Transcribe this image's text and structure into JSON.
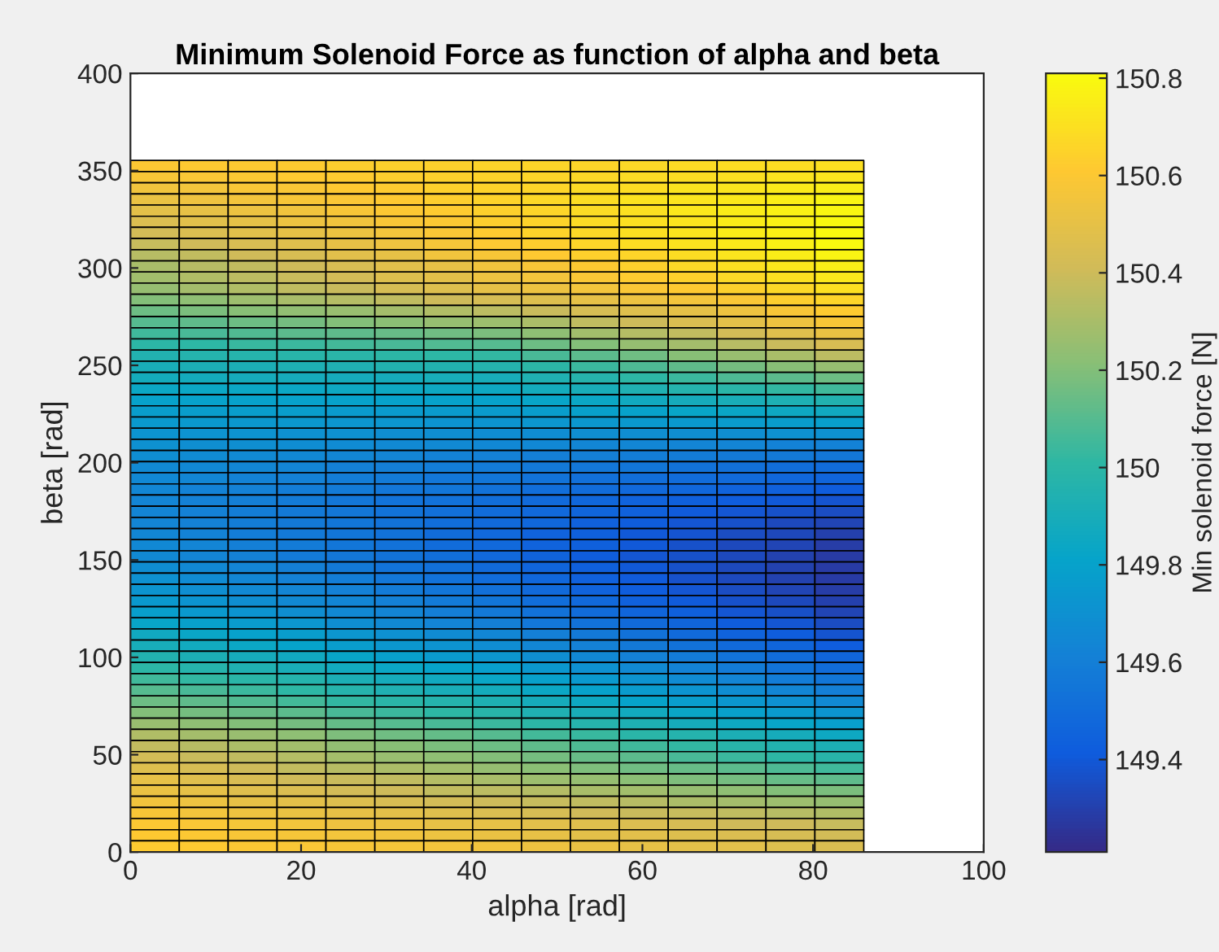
{
  "chart_data": {
    "type": "heatmap",
    "title": "Minimum Solenoid Force as function of alpha and beta",
    "xlabel": "alpha [rad]",
    "ylabel": "beta [rad]",
    "clabel": "Min solenoid force [N]",
    "xlim": [
      0,
      100
    ],
    "xticks": [
      0,
      20,
      40,
      60,
      80,
      100
    ],
    "ylim": [
      0,
      400
    ],
    "yticks": [
      0,
      50,
      100,
      150,
      200,
      250,
      300,
      350,
      400
    ],
    "clim": [
      149.21,
      150.81
    ],
    "cticks": [
      149.4,
      149.6,
      149.8,
      {
        "value": 150,
        "label": "150"
      },
      150.2,
      150.4,
      150.6,
      150.8
    ],
    "colors": [
      "#352a87",
      "#0f5cdd",
      "#1481d6",
      "#06a4ca",
      "#2eb7a4",
      "#87bf77",
      "#d1bb59",
      "#fec832",
      "#f9fb0e"
    ],
    "grid": false,
    "x": [
      2.86,
      8.59,
      14.32,
      20.05,
      25.78,
      31.51,
      37.24,
      42.97,
      48.7,
      54.43,
      60.16,
      65.89,
      71.62,
      77.35,
      83.08
    ],
    "y": [
      352.38,
      346.65,
      340.92,
      335.19,
      329.46,
      323.73,
      318.0,
      312.27,
      306.54,
      300.81,
      295.08,
      289.35,
      283.62,
      277.89,
      272.16,
      266.43,
      260.7,
      254.97,
      249.24,
      243.51,
      237.78,
      232.05,
      226.32,
      220.59,
      214.86,
      209.13,
      203.4,
      197.68,
      191.95,
      186.22,
      180.49,
      174.76,
      169.03,
      163.3,
      157.57,
      151.84,
      146.11,
      140.38,
      134.65,
      128.92,
      123.19,
      117.46,
      111.73,
      106.0,
      100.27,
      94.54,
      88.81,
      83.08,
      77.35,
      71.62,
      65.89,
      60.16,
      54.43,
      48.7,
      42.97,
      37.24,
      31.51,
      25.78,
      20.05,
      14.32,
      8.59,
      2.86
    ],
    "cells": [
      [
        150.6,
        150.61,
        150.61,
        150.62,
        150.63,
        150.64,
        150.64,
        150.65,
        150.66,
        150.66,
        150.67,
        150.68,
        150.69,
        150.69,
        150.7
      ],
      [
        150.58,
        150.59,
        150.6,
        150.61,
        150.62,
        150.63,
        150.64,
        150.65,
        150.66,
        150.67,
        150.68,
        150.69,
        150.7,
        150.71,
        150.72
      ],
      [
        150.55,
        150.56,
        150.58,
        150.59,
        150.61,
        150.62,
        150.64,
        150.65,
        150.66,
        150.68,
        150.69,
        150.71,
        150.72,
        150.74,
        150.75
      ],
      [
        150.52,
        150.54,
        150.56,
        150.58,
        150.59,
        150.61,
        150.63,
        150.65,
        150.67,
        150.69,
        150.71,
        150.72,
        150.74,
        150.76,
        150.78
      ],
      [
        150.49,
        150.51,
        150.53,
        150.55,
        150.58,
        150.6,
        150.62,
        150.64,
        150.66,
        150.68,
        150.7,
        150.73,
        150.75,
        150.77,
        150.79
      ],
      [
        150.45,
        150.48,
        150.5,
        150.53,
        150.55,
        150.58,
        150.6,
        150.63,
        150.65,
        150.68,
        150.7,
        150.72,
        150.75,
        150.77,
        150.8
      ],
      [
        150.42,
        150.45,
        150.48,
        150.51,
        150.53,
        150.56,
        150.59,
        150.62,
        150.65,
        150.67,
        150.7,
        150.72,
        150.75,
        150.77,
        150.8
      ],
      [
        150.38,
        150.41,
        150.44,
        150.47,
        150.51,
        150.54,
        150.57,
        150.6,
        150.63,
        150.66,
        150.69,
        150.71,
        150.74,
        150.77,
        150.8
      ],
      [
        150.34,
        150.37,
        150.41,
        150.44,
        150.48,
        150.51,
        150.55,
        150.58,
        150.61,
        150.64,
        150.66,
        150.69,
        150.72,
        150.75,
        150.78
      ],
      [
        150.3,
        150.34,
        150.37,
        150.41,
        150.44,
        150.48,
        150.51,
        150.55,
        150.58,
        150.61,
        150.64,
        150.67,
        150.7,
        150.73,
        150.76
      ],
      [
        150.28,
        150.32,
        150.35,
        150.39,
        150.42,
        150.46,
        150.49,
        150.53,
        150.56,
        150.59,
        150.62,
        150.64,
        150.67,
        150.7,
        150.73
      ],
      [
        150.25,
        150.29,
        150.32,
        150.36,
        150.39,
        150.43,
        150.46,
        150.5,
        150.53,
        150.56,
        150.59,
        150.61,
        150.64,
        150.67,
        150.7
      ],
      [
        150.2,
        150.23,
        150.27,
        150.3,
        150.33,
        150.36,
        150.4,
        150.43,
        150.46,
        150.5,
        150.53,
        150.56,
        150.59,
        150.63,
        150.66
      ],
      [
        150.15,
        150.18,
        150.21,
        150.24,
        150.26,
        150.29,
        150.32,
        150.35,
        150.39,
        150.43,
        150.47,
        150.5,
        150.54,
        150.58,
        150.62
      ],
      [
        150.1,
        150.12,
        150.15,
        150.17,
        150.2,
        150.22,
        150.25,
        150.27,
        150.31,
        150.36,
        150.4,
        150.45,
        150.49,
        150.54,
        150.58
      ],
      [
        150.05,
        150.07,
        150.09,
        150.11,
        150.12,
        150.14,
        150.16,
        150.18,
        150.23,
        150.28,
        150.33,
        150.37,
        150.42,
        150.47,
        150.52
      ],
      [
        150.0,
        150.01,
        150.03,
        150.04,
        150.06,
        150.07,
        150.09,
        150.1,
        150.15,
        150.2,
        150.25,
        150.29,
        150.34,
        150.39,
        150.44
      ],
      [
        149.95,
        149.96,
        149.97,
        149.98,
        149.99,
        150.0,
        150.01,
        150.02,
        150.07,
        150.11,
        150.16,
        150.21,
        150.26,
        150.3,
        150.35
      ],
      [
        149.91,
        149.92,
        149.92,
        149.93,
        149.94,
        149.95,
        149.95,
        149.96,
        150.0,
        150.04,
        150.08,
        150.12,
        150.17,
        150.21,
        150.25
      ],
      [
        149.88,
        149.88,
        149.89,
        149.89,
        149.89,
        149.89,
        149.9,
        149.9,
        149.94,
        149.97,
        150.01,
        150.04,
        150.08,
        150.11,
        150.15
      ],
      [
        149.84,
        149.84,
        149.84,
        149.84,
        149.85,
        149.85,
        149.85,
        149.85,
        149.88,
        149.91,
        149.94,
        149.96,
        149.99,
        150.02,
        150.05
      ],
      [
        149.8,
        149.8,
        149.8,
        149.8,
        149.8,
        149.8,
        149.8,
        149.8,
        149.82,
        149.84,
        149.86,
        149.89,
        149.91,
        149.93,
        149.95
      ],
      [
        149.77,
        149.77,
        149.77,
        149.77,
        149.76,
        149.76,
        149.76,
        149.76,
        149.77,
        149.79,
        149.8,
        149.82,
        149.83,
        149.85,
        149.86
      ],
      [
        149.75,
        149.75,
        149.74,
        149.74,
        149.73,
        149.73,
        149.72,
        149.72,
        149.73,
        149.74,
        149.75,
        149.75,
        149.76,
        149.77,
        149.78
      ],
      [
        149.72,
        149.71,
        149.71,
        149.7,
        149.7,
        149.69,
        149.69,
        149.68,
        149.68,
        149.69,
        149.69,
        149.69,
        149.69,
        149.7,
        149.7
      ],
      [
        149.7,
        149.69,
        149.69,
        149.68,
        149.67,
        149.66,
        149.66,
        149.65,
        149.65,
        149.64,
        149.64,
        149.63,
        149.63,
        149.62,
        149.62
      ],
      [
        149.68,
        149.67,
        149.66,
        149.65,
        149.64,
        149.63,
        149.62,
        149.61,
        149.6,
        149.6,
        149.59,
        149.58,
        149.57,
        149.57,
        149.56
      ],
      [
        149.66,
        149.65,
        149.64,
        149.63,
        149.61,
        149.6,
        149.59,
        149.58,
        149.57,
        149.56,
        149.55,
        149.53,
        149.52,
        149.51,
        149.5
      ],
      [
        149.65,
        149.64,
        149.62,
        149.61,
        149.59,
        149.58,
        149.56,
        149.55,
        149.54,
        149.52,
        149.51,
        149.5,
        149.49,
        149.47,
        149.46
      ],
      [
        149.64,
        149.62,
        149.61,
        149.59,
        149.58,
        149.56,
        149.55,
        149.53,
        149.51,
        149.5,
        149.48,
        149.47,
        149.45,
        149.44,
        149.42
      ],
      [
        149.63,
        149.61,
        149.6,
        149.58,
        149.56,
        149.54,
        149.53,
        149.51,
        149.49,
        149.47,
        149.45,
        149.43,
        149.42,
        149.4,
        149.38
      ],
      [
        149.63,
        149.61,
        149.59,
        149.57,
        149.56,
        149.54,
        149.52,
        149.5,
        149.48,
        149.46,
        149.44,
        149.41,
        149.39,
        149.37,
        149.35
      ],
      [
        149.63,
        149.61,
        149.59,
        149.57,
        149.55,
        149.53,
        149.51,
        149.49,
        149.47,
        149.44,
        149.42,
        149.39,
        149.37,
        149.34,
        149.32
      ],
      [
        149.64,
        149.62,
        149.59,
        149.57,
        149.55,
        149.53,
        149.5,
        149.48,
        149.45,
        149.43,
        149.4,
        149.38,
        149.35,
        149.33,
        149.3
      ],
      [
        149.65,
        149.63,
        149.6,
        149.58,
        149.55,
        149.53,
        149.5,
        149.48,
        149.45,
        149.43,
        149.4,
        149.37,
        149.34,
        149.32,
        149.29
      ],
      [
        149.66,
        149.63,
        149.61,
        149.58,
        149.56,
        149.53,
        149.51,
        149.48,
        149.45,
        149.42,
        149.39,
        149.37,
        149.34,
        149.31,
        149.28
      ],
      [
        149.68,
        149.65,
        149.63,
        149.6,
        149.57,
        149.54,
        149.52,
        149.49,
        149.46,
        149.43,
        149.4,
        149.37,
        149.34,
        149.31,
        149.28
      ],
      [
        149.7,
        149.67,
        149.64,
        149.61,
        149.59,
        149.56,
        149.53,
        149.5,
        149.47,
        149.44,
        149.41,
        149.37,
        149.34,
        149.31,
        149.28
      ],
      [
        149.72,
        149.69,
        149.66,
        149.63,
        149.61,
        149.58,
        149.55,
        149.52,
        149.49,
        149.45,
        149.42,
        149.39,
        149.35,
        149.32,
        149.29
      ],
      [
        149.75,
        149.72,
        149.69,
        149.66,
        149.64,
        149.61,
        149.58,
        149.55,
        149.51,
        149.48,
        149.44,
        149.41,
        149.37,
        149.34,
        149.3
      ],
      [
        149.78,
        149.75,
        149.72,
        149.69,
        149.66,
        149.63,
        149.6,
        149.57,
        149.53,
        149.5,
        149.46,
        149.43,
        149.39,
        149.36,
        149.32
      ],
      [
        149.82,
        149.79,
        149.76,
        149.73,
        149.69,
        149.66,
        149.63,
        149.6,
        149.56,
        149.53,
        149.49,
        149.46,
        149.42,
        149.39,
        149.35
      ],
      [
        149.86,
        149.83,
        149.8,
        149.77,
        149.73,
        149.7,
        149.67,
        149.64,
        149.6,
        149.57,
        149.53,
        149.49,
        149.45,
        149.42,
        149.38
      ],
      [
        149.9,
        149.87,
        149.84,
        149.81,
        149.77,
        149.74,
        149.71,
        149.68,
        149.64,
        149.61,
        149.57,
        149.53,
        149.49,
        149.46,
        149.42
      ],
      [
        149.95,
        149.92,
        149.89,
        149.86,
        149.82,
        149.79,
        149.76,
        149.73,
        149.69,
        149.65,
        149.61,
        149.58,
        149.54,
        149.5,
        149.46
      ],
      [
        150.0,
        149.97,
        149.94,
        149.91,
        149.87,
        149.84,
        149.81,
        149.78,
        149.74,
        149.7,
        149.66,
        149.62,
        149.58,
        149.54,
        149.5
      ],
      [
        150.05,
        150.02,
        149.99,
        149.96,
        149.92,
        149.89,
        149.86,
        149.83,
        149.79,
        149.75,
        149.71,
        149.67,
        149.63,
        149.59,
        149.55
      ],
      [
        150.1,
        150.07,
        150.04,
        150.01,
        149.97,
        149.94,
        149.91,
        149.88,
        149.84,
        149.8,
        149.76,
        149.72,
        149.68,
        149.64,
        149.6
      ],
      [
        150.15,
        150.12,
        150.09,
        150.06,
        150.02,
        149.99,
        149.96,
        149.93,
        149.89,
        149.85,
        149.81,
        149.77,
        149.74,
        149.7,
        149.66
      ],
      [
        150.2,
        150.17,
        150.14,
        150.11,
        150.07,
        150.04,
        150.01,
        149.98,
        149.94,
        149.91,
        149.87,
        149.83,
        149.79,
        149.76,
        149.72
      ],
      [
        150.26,
        150.23,
        150.2,
        150.17,
        150.13,
        150.1,
        150.07,
        150.04,
        150.0,
        149.97,
        149.93,
        149.89,
        149.85,
        149.82,
        149.78
      ],
      [
        150.32,
        150.29,
        150.26,
        150.23,
        150.19,
        150.16,
        150.13,
        150.1,
        150.06,
        150.03,
        149.99,
        149.96,
        149.92,
        149.89,
        149.85
      ],
      [
        150.37,
        150.34,
        150.31,
        150.28,
        150.24,
        150.21,
        150.18,
        150.15,
        150.12,
        150.08,
        150.05,
        150.02,
        149.98,
        149.95,
        149.92
      ],
      [
        150.42,
        150.39,
        150.36,
        150.33,
        150.29,
        150.26,
        150.23,
        150.2,
        150.17,
        150.14,
        150.11,
        150.07,
        150.04,
        150.01,
        149.98
      ],
      [
        150.46,
        150.43,
        150.4,
        150.37,
        150.34,
        150.31,
        150.28,
        150.25,
        150.22,
        150.19,
        150.16,
        150.14,
        150.11,
        150.08,
        150.05
      ],
      [
        150.5,
        150.47,
        150.44,
        150.41,
        150.39,
        150.36,
        150.33,
        150.3,
        150.27,
        150.25,
        150.22,
        150.19,
        150.17,
        150.14,
        150.12
      ],
      [
        150.52,
        150.5,
        150.47,
        150.45,
        150.42,
        150.4,
        150.37,
        150.35,
        150.33,
        150.3,
        150.28,
        150.25,
        150.23,
        150.2,
        150.18
      ],
      [
        150.55,
        150.53,
        150.51,
        150.49,
        150.46,
        150.44,
        150.42,
        150.4,
        150.38,
        150.36,
        150.34,
        150.31,
        150.29,
        150.27,
        150.25
      ],
      [
        150.58,
        150.56,
        150.54,
        150.52,
        150.51,
        150.49,
        150.47,
        150.45,
        150.43,
        150.41,
        150.39,
        150.38,
        150.36,
        150.34,
        150.32
      ],
      [
        150.6,
        150.59,
        150.57,
        150.56,
        150.54,
        150.53,
        150.51,
        150.5,
        150.48,
        150.47,
        150.45,
        150.43,
        150.41,
        150.4,
        150.38
      ],
      [
        150.61,
        150.6,
        150.58,
        150.57,
        150.56,
        150.55,
        150.53,
        150.52,
        150.51,
        150.49,
        150.48,
        150.46,
        150.45,
        150.43,
        150.42
      ],
      [
        150.62,
        150.61,
        150.6,
        150.59,
        150.58,
        150.57,
        150.56,
        150.55,
        150.54,
        150.52,
        150.51,
        150.49,
        150.48,
        150.46,
        150.45
      ]
    ]
  }
}
